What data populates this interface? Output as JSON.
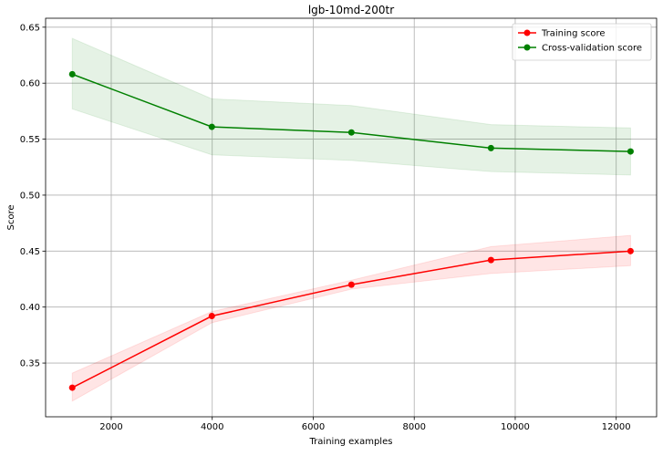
{
  "chart_data": {
    "type": "line",
    "title": "lgb-10md-200tr",
    "xlabel": "Training examples",
    "ylabel": "Score",
    "xlim": [
      700,
      12800
    ],
    "ylim": [
      0.302,
      0.658
    ],
    "xticks": [
      2000,
      4000,
      6000,
      8000,
      10000,
      12000
    ],
    "yticks": [
      0.35,
      0.4,
      0.45,
      0.5,
      0.55,
      0.6,
      0.65
    ],
    "grid": true,
    "legend": "top-right",
    "x": [
      1228,
      3992,
      6756,
      9520,
      12284
    ],
    "series": [
      {
        "name": "Training score",
        "color": "#ff0000",
        "values": [
          0.328,
          0.392,
          0.42,
          0.442,
          0.45
        ],
        "lower": [
          0.316,
          0.386,
          0.416,
          0.43,
          0.437
        ],
        "upper": [
          0.341,
          0.396,
          0.424,
          0.454,
          0.464
        ]
      },
      {
        "name": "Cross-validation score",
        "color": "#008000",
        "values": [
          0.608,
          0.561,
          0.556,
          0.542,
          0.539
        ],
        "lower": [
          0.577,
          0.536,
          0.531,
          0.521,
          0.518
        ],
        "upper": [
          0.64,
          0.586,
          0.58,
          0.563,
          0.56
        ]
      }
    ]
  }
}
